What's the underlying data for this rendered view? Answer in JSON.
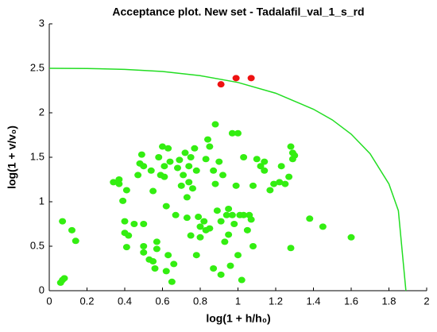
{
  "chart_data": {
    "type": "scatter",
    "title": "Acceptance plot. New set - Tadalafil_val_1_s_rd",
    "x_label": "log(1 + h/h₀)",
    "y_label": "log(1 + v/v₀)",
    "xlim": [
      0,
      2
    ],
    "ylim": [
      0,
      3
    ],
    "xticks": [
      0,
      0.2,
      0.4,
      0.6,
      0.8,
      1,
      1.2,
      1.4,
      1.6,
      1.8,
      2
    ],
    "yticks": [
      0,
      0.5,
      1,
      1.5,
      2,
      2.5,
      3
    ],
    "grid": false,
    "series": [
      {
        "type": "line",
        "color": "#22dd22",
        "x": [
          0,
          0.2,
          0.4,
          0.6,
          0.8,
          1.0,
          1.2,
          1.4,
          1.5,
          1.6,
          1.7,
          1.8,
          1.85,
          1.89
        ],
        "values": [
          2.5,
          2.498,
          2.488,
          2.464,
          2.417,
          2.341,
          2.22,
          2.04,
          1.92,
          1.76,
          1.54,
          1.2,
          0.9,
          0
        ]
      },
      {
        "type": "scatter",
        "color": "#33ee11",
        "x": [
          0.07,
          0.12,
          0.14,
          0.07,
          0.08,
          0.06,
          0.34,
          0.37,
          0.37,
          0.39,
          0.4,
          0.4,
          0.42,
          0.41,
          0.41,
          0.45,
          0.47,
          0.48,
          0.49,
          0.5,
          0.5,
          0.5,
          0.5,
          0.53,
          0.55,
          0.54,
          0.55,
          0.56,
          0.57,
          0.57,
          0.58,
          0.59,
          0.6,
          0.61,
          0.61,
          0.62,
          0.62,
          0.63,
          0.63,
          0.64,
          0.65,
          0.66,
          0.67,
          0.68,
          0.69,
          0.7,
          0.71,
          0.72,
          0.73,
          0.73,
          0.74,
          0.74,
          0.75,
          0.75,
          0.76,
          0.77,
          0.78,
          0.78,
          0.79,
          0.8,
          0.8,
          0.82,
          0.83,
          0.83,
          0.84,
          0.85,
          0.85,
          0.87,
          0.87,
          0.88,
          0.88,
          0.89,
          0.9,
          0.91,
          0.91,
          0.92,
          0.93,
          0.94,
          0.95,
          0.95,
          0.96,
          0.97,
          0.97,
          0.98,
          0.99,
          1.0,
          1.0,
          1.01,
          1.02,
          1.03,
          1.03,
          1.05,
          1.06,
          1.07,
          1.08,
          1.08,
          1.1,
          1.12,
          1.14,
          1.14,
          1.17,
          1.19,
          1.22,
          1.23,
          1.25,
          1.27,
          1.28,
          1.29,
          1.29,
          1.28,
          1.3,
          1.38,
          1.45,
          1.6
        ],
        "values": [
          0.78,
          0.68,
          0.56,
          0.12,
          0.14,
          0.09,
          1.22,
          1.25,
          1.2,
          1.01,
          0.78,
          0.65,
          0.62,
          0.49,
          1.13,
          0.75,
          1.3,
          1.43,
          1.53,
          1.4,
          0.5,
          0.43,
          0.75,
          0.35,
          0.33,
          1.35,
          1.12,
          0.25,
          0.47,
          0.55,
          1.5,
          1.3,
          1.62,
          1.4,
          1.28,
          0.95,
          0.22,
          0.4,
          1.6,
          1.45,
          0.1,
          0.3,
          0.85,
          1.38,
          1.47,
          1.18,
          1.3,
          1.55,
          1.05,
          0.82,
          1.4,
          1.22,
          1.5,
          0.62,
          1.15,
          1.6,
          1.35,
          0.4,
          0.83,
          0.6,
          0.72,
          0.78,
          1.48,
          0.68,
          1.7,
          0.7,
          1.62,
          0.25,
          1.35,
          1.2,
          1.87,
          0.9,
          1.45,
          0.78,
          0.18,
          1.3,
          0.55,
          0.85,
          0.92,
          0.63,
          0.28,
          0.85,
          1.77,
          0.75,
          1.18,
          1.77,
          0.4,
          0.85,
          0.12,
          0.85,
          1.5,
          0.68,
          0.85,
          0.8,
          0.5,
          1.18,
          1.48,
          1.4,
          1.45,
          1.35,
          1.13,
          1.2,
          1.22,
          1.4,
          1.2,
          1.28,
          1.62,
          1.55,
          1.48,
          0.48,
          1.52,
          0.81,
          0.72,
          0.6
        ]
      },
      {
        "type": "scatter",
        "color": "#ee1111",
        "x": [
          0.91,
          0.99,
          1.07
        ],
        "values": [
          2.32,
          2.39,
          2.39
        ]
      }
    ]
  }
}
